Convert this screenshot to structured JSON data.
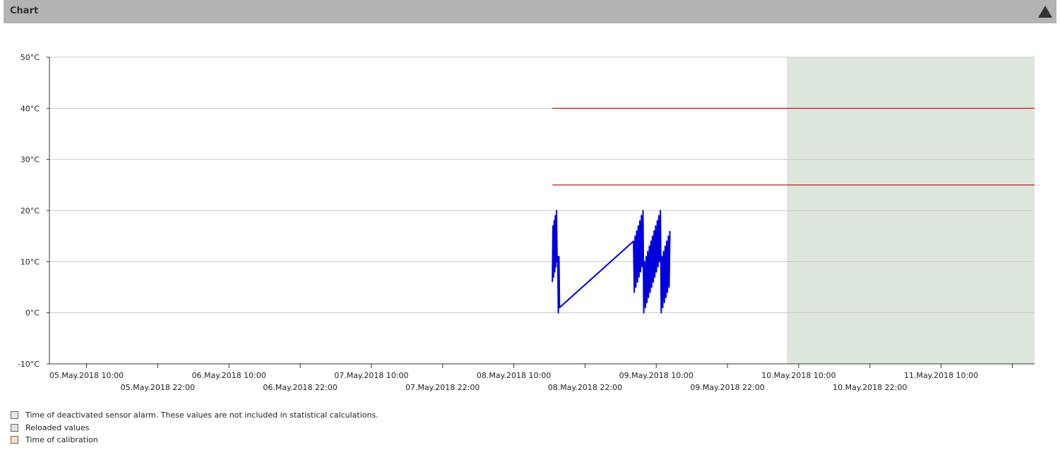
{
  "header": {
    "title": "Chart"
  },
  "chart_data": {
    "type": "line",
    "ylim": [
      -10,
      50
    ],
    "y_ticks": [
      -10,
      0,
      10,
      20,
      30,
      40,
      50
    ],
    "y_unit": "°C",
    "x_range": [
      "2018-05-05 03:45",
      "2018-05-12 01:45"
    ],
    "x_tick_labels_upper": [
      {
        "x": "2018-05-05 10:00",
        "label": "05.May.2018 10:00"
      },
      {
        "x": "2018-05-06 10:00",
        "label": "06.May.2018 10:00"
      },
      {
        "x": "2018-05-07 10:00",
        "label": "07.May.2018 10:00"
      },
      {
        "x": "2018-05-08 10:00",
        "label": "08.May.2018 10:00"
      },
      {
        "x": "2018-05-09 10:00",
        "label": "09.May.2018 10:00"
      },
      {
        "x": "2018-05-10 10:00",
        "label": "10.May.2018 10:00"
      },
      {
        "x": "2018-05-11 10:00",
        "label": "11.May.2018 10:00"
      }
    ],
    "x_tick_labels_lower": [
      {
        "x": "2018-05-05 22:00",
        "label": "05.May.2018 22:00"
      },
      {
        "x": "2018-05-06 22:00",
        "label": "06.May.2018 22:00"
      },
      {
        "x": "2018-05-07 22:00",
        "label": "07.May.2018 22:00"
      },
      {
        "x": "2018-05-08 22:00",
        "label": "08.May.2018 22:00"
      },
      {
        "x": "2018-05-09 22:00",
        "label": "09.May.2018 22:00"
      },
      {
        "x": "2018-05-10 22:00",
        "label": "10.May.2018 22:00"
      }
    ],
    "extra_ticks": [
      "2018-05-11 22:00"
    ],
    "grid": true,
    "reloaded_region": {
      "start": "2018-05-10 08:00",
      "end": "2018-05-12 01:45",
      "color": "#dce6dd"
    },
    "thresholds": [
      {
        "value": 40,
        "start": "2018-05-08 16:30",
        "end": "2018-05-12 01:45",
        "color": "#cc0000"
      },
      {
        "value": 25,
        "start": "2018-05-08 16:30",
        "end": "2018-05-12 01:45",
        "color": "#cc0000"
      }
    ],
    "series": [
      {
        "color": "#0000dd",
        "points": [
          [
            "2018-05-08 16:30",
            6
          ],
          [
            "2018-05-08 16:36",
            17
          ],
          [
            "2018-05-08 16:42",
            7
          ],
          [
            "2018-05-08 16:48",
            18
          ],
          [
            "2018-05-08 16:54",
            8
          ],
          [
            "2018-05-08 17:00",
            19
          ],
          [
            "2018-05-08 17:06",
            9
          ],
          [
            "2018-05-08 17:12",
            20
          ],
          [
            "2018-05-08 17:18",
            10
          ],
          [
            "2018-05-08 17:24",
            11
          ],
          [
            "2018-05-08 17:30",
            0
          ],
          [
            "2018-05-08 17:36",
            11
          ],
          [
            "2018-05-08 17:42",
            1
          ],
          [
            "2018-05-09 06:10",
            14
          ],
          [
            "2018-05-09 06:18",
            4
          ],
          [
            "2018-05-09 06:26",
            15
          ],
          [
            "2018-05-09 06:34",
            5
          ],
          [
            "2018-05-09 06:42",
            16
          ],
          [
            "2018-05-09 06:50",
            6
          ],
          [
            "2018-05-09 06:58",
            17
          ],
          [
            "2018-05-09 07:06",
            7
          ],
          [
            "2018-05-09 07:14",
            18
          ],
          [
            "2018-05-09 07:22",
            8
          ],
          [
            "2018-05-09 07:30",
            19
          ],
          [
            "2018-05-09 07:38",
            9
          ],
          [
            "2018-05-09 07:46",
            20
          ],
          [
            "2018-05-09 07:54",
            0
          ],
          [
            "2018-05-09 08:02",
            10
          ],
          [
            "2018-05-09 08:10",
            1
          ],
          [
            "2018-05-09 08:18",
            11
          ],
          [
            "2018-05-09 08:26",
            2
          ],
          [
            "2018-05-09 08:34",
            12
          ],
          [
            "2018-05-09 08:42",
            3
          ],
          [
            "2018-05-09 08:50",
            13
          ],
          [
            "2018-05-09 08:58",
            4
          ],
          [
            "2018-05-09 09:06",
            14
          ],
          [
            "2018-05-09 09:14",
            5
          ],
          [
            "2018-05-09 09:22",
            15
          ],
          [
            "2018-05-09 09:30",
            6
          ],
          [
            "2018-05-09 09:38",
            16
          ],
          [
            "2018-05-09 09:46",
            7
          ],
          [
            "2018-05-09 09:54",
            17
          ],
          [
            "2018-05-09 10:02",
            8
          ],
          [
            "2018-05-09 10:10",
            18
          ],
          [
            "2018-05-09 10:18",
            9
          ],
          [
            "2018-05-09 10:26",
            19
          ],
          [
            "2018-05-09 10:34",
            10
          ],
          [
            "2018-05-09 10:42",
            20
          ],
          [
            "2018-05-09 10:50",
            0
          ],
          [
            "2018-05-09 10:58",
            11
          ],
          [
            "2018-05-09 11:06",
            1
          ],
          [
            "2018-05-09 11:14",
            12
          ],
          [
            "2018-05-09 11:22",
            2
          ],
          [
            "2018-05-09 11:30",
            13
          ],
          [
            "2018-05-09 11:38",
            3
          ],
          [
            "2018-05-09 11:46",
            14
          ],
          [
            "2018-05-09 11:54",
            4
          ],
          [
            "2018-05-09 12:02",
            15
          ],
          [
            "2018-05-09 12:10",
            5
          ],
          [
            "2018-05-09 12:18",
            16
          ]
        ]
      }
    ]
  },
  "legend": [
    {
      "label": "Time of deactivated sensor alarm. These values are not included in statistical calculations.",
      "color": "#e6e6e6"
    },
    {
      "label": "Reloaded values",
      "color": "#dce6dd"
    },
    {
      "label": "Time of calibration",
      "color": "#f7dcc7"
    }
  ]
}
